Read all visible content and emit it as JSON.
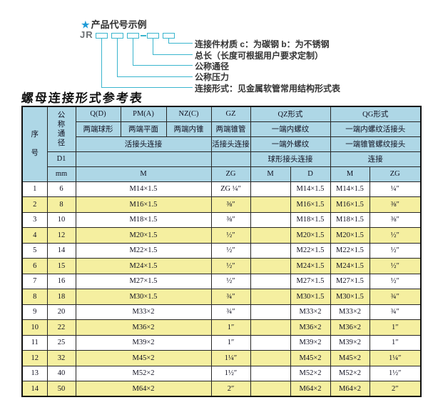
{
  "colors": {
    "accent_cyan": "#3ab5ce",
    "star_blue": "#1e9bd7",
    "header_bg": "#aed7e6",
    "row_alt_bg": "#f5efa0",
    "border": "#272727"
  },
  "diagram": {
    "star": "★",
    "title": "产品代号示例",
    "prefix": "JR",
    "labels": [
      "连接件材质  c：为碳钢  b：为不锈钢",
      "总长（长度可根据用户要求定制）",
      "公称通径",
      "公称压力",
      "连接形式：见金属软管常用结构形式表"
    ]
  },
  "table": {
    "title": "螺母连接形式参考表",
    "header": {
      "seq": "序\n\n号",
      "dn": "公\n称\n通\n径",
      "d1": "D1",
      "mm": "mm",
      "q": "Q(D)",
      "pm": "PM(A)",
      "nz": "NZ(C)",
      "gz": "GZ",
      "qz": "QZ形式",
      "qg": "QG形式",
      "q_desc": "两端球形",
      "pm_desc": "两端平面",
      "nz_desc": "两端内锥",
      "gz_desc": "两端锥管",
      "qz_desc1": "一端内螺纹",
      "qg_desc1": "一端内螺纹活接头",
      "union_conn": "活接头连接",
      "gz_conn": "活接头连接",
      "qz_desc2": "一端外螺纹",
      "qg_desc2": "一端锥管螺纹接头",
      "qz_conn": "球形接头连接",
      "qg_conn": "连接",
      "m": "M",
      "zg": "ZG",
      "qz_m": "M",
      "qz_d": "D",
      "qg_m": "M",
      "qg_zg": "ZG"
    },
    "rows": [
      {
        "seq": "1",
        "dn": "6",
        "m": "M14×1.5",
        "zg": "ZG ¼″",
        "qz_m": "",
        "qz_d": "M14×1.5",
        "qg_m": "M14×1.5",
        "qg_zg": "¼″"
      },
      {
        "seq": "2",
        "dn": "8",
        "m": "M16×1.5",
        "zg": "⅜″",
        "qz_m": "",
        "qz_d": "M16×1.5",
        "qg_m": "M16×1.5",
        "qg_zg": "⅜″"
      },
      {
        "seq": "3",
        "dn": "10",
        "m": "M18×1.5",
        "zg": "⅜″",
        "qz_m": "",
        "qz_d": "M18×1.5",
        "qg_m": "M18×1.5",
        "qg_zg": "⅜″"
      },
      {
        "seq": "4",
        "dn": "12",
        "m": "M20×1.5",
        "zg": "½″",
        "qz_m": "",
        "qz_d": "M20×1.5",
        "qg_m": "M20×1.5",
        "qg_zg": "½″"
      },
      {
        "seq": "5",
        "dn": "14",
        "m": "M22×1.5",
        "zg": "½″",
        "qz_m": "",
        "qz_d": "M22×1.5",
        "qg_m": "M22×1.5",
        "qg_zg": "½″"
      },
      {
        "seq": "6",
        "dn": "15",
        "m": "M24×1.5",
        "zg": "½″",
        "qz_m": "",
        "qz_d": "M24×1.5",
        "qg_m": "M24×1.5",
        "qg_zg": "½″"
      },
      {
        "seq": "7",
        "dn": "16",
        "m": "M27×1.5",
        "zg": "½″",
        "qz_m": "",
        "qz_d": "M27×1.5",
        "qg_m": "M27×1.5",
        "qg_zg": "½″"
      },
      {
        "seq": "8",
        "dn": "18",
        "m": "M30×1.5",
        "zg": "¾″",
        "qz_m": "",
        "qz_d": "M30×1.5",
        "qg_m": "M30×1.5",
        "qg_zg": "¾″"
      },
      {
        "seq": "9",
        "dn": "20",
        "m": "M33×2",
        "zg": "¾″",
        "qz_m": "",
        "qz_d": "M33×2",
        "qg_m": "M33×2",
        "qg_zg": "¾″"
      },
      {
        "seq": "10",
        "dn": "22",
        "m": "M36×2",
        "zg": "1″",
        "qz_m": "",
        "qz_d": "M36×2",
        "qg_m": "M36×2",
        "qg_zg": "1″"
      },
      {
        "seq": "11",
        "dn": "25",
        "m": "M39×2",
        "zg": "1″",
        "qz_m": "",
        "qz_d": "M39×2",
        "qg_m": "M39×2",
        "qg_zg": "1″"
      },
      {
        "seq": "12",
        "dn": "32",
        "m": "M45×2",
        "zg": "1¼″",
        "qz_m": "",
        "qz_d": "M45×2",
        "qg_m": "M45×2",
        "qg_zg": "1¼″"
      },
      {
        "seq": "13",
        "dn": "40",
        "m": "M52×2",
        "zg": "1½″",
        "qz_m": "",
        "qz_d": "M52×2",
        "qg_m": "M52×2",
        "qg_zg": "1½″"
      },
      {
        "seq": "14",
        "dn": "50",
        "m": "M64×2",
        "zg": "2″",
        "qz_m": "",
        "qz_d": "M64×2",
        "qg_m": "M64×2",
        "qg_zg": "2″"
      }
    ]
  }
}
